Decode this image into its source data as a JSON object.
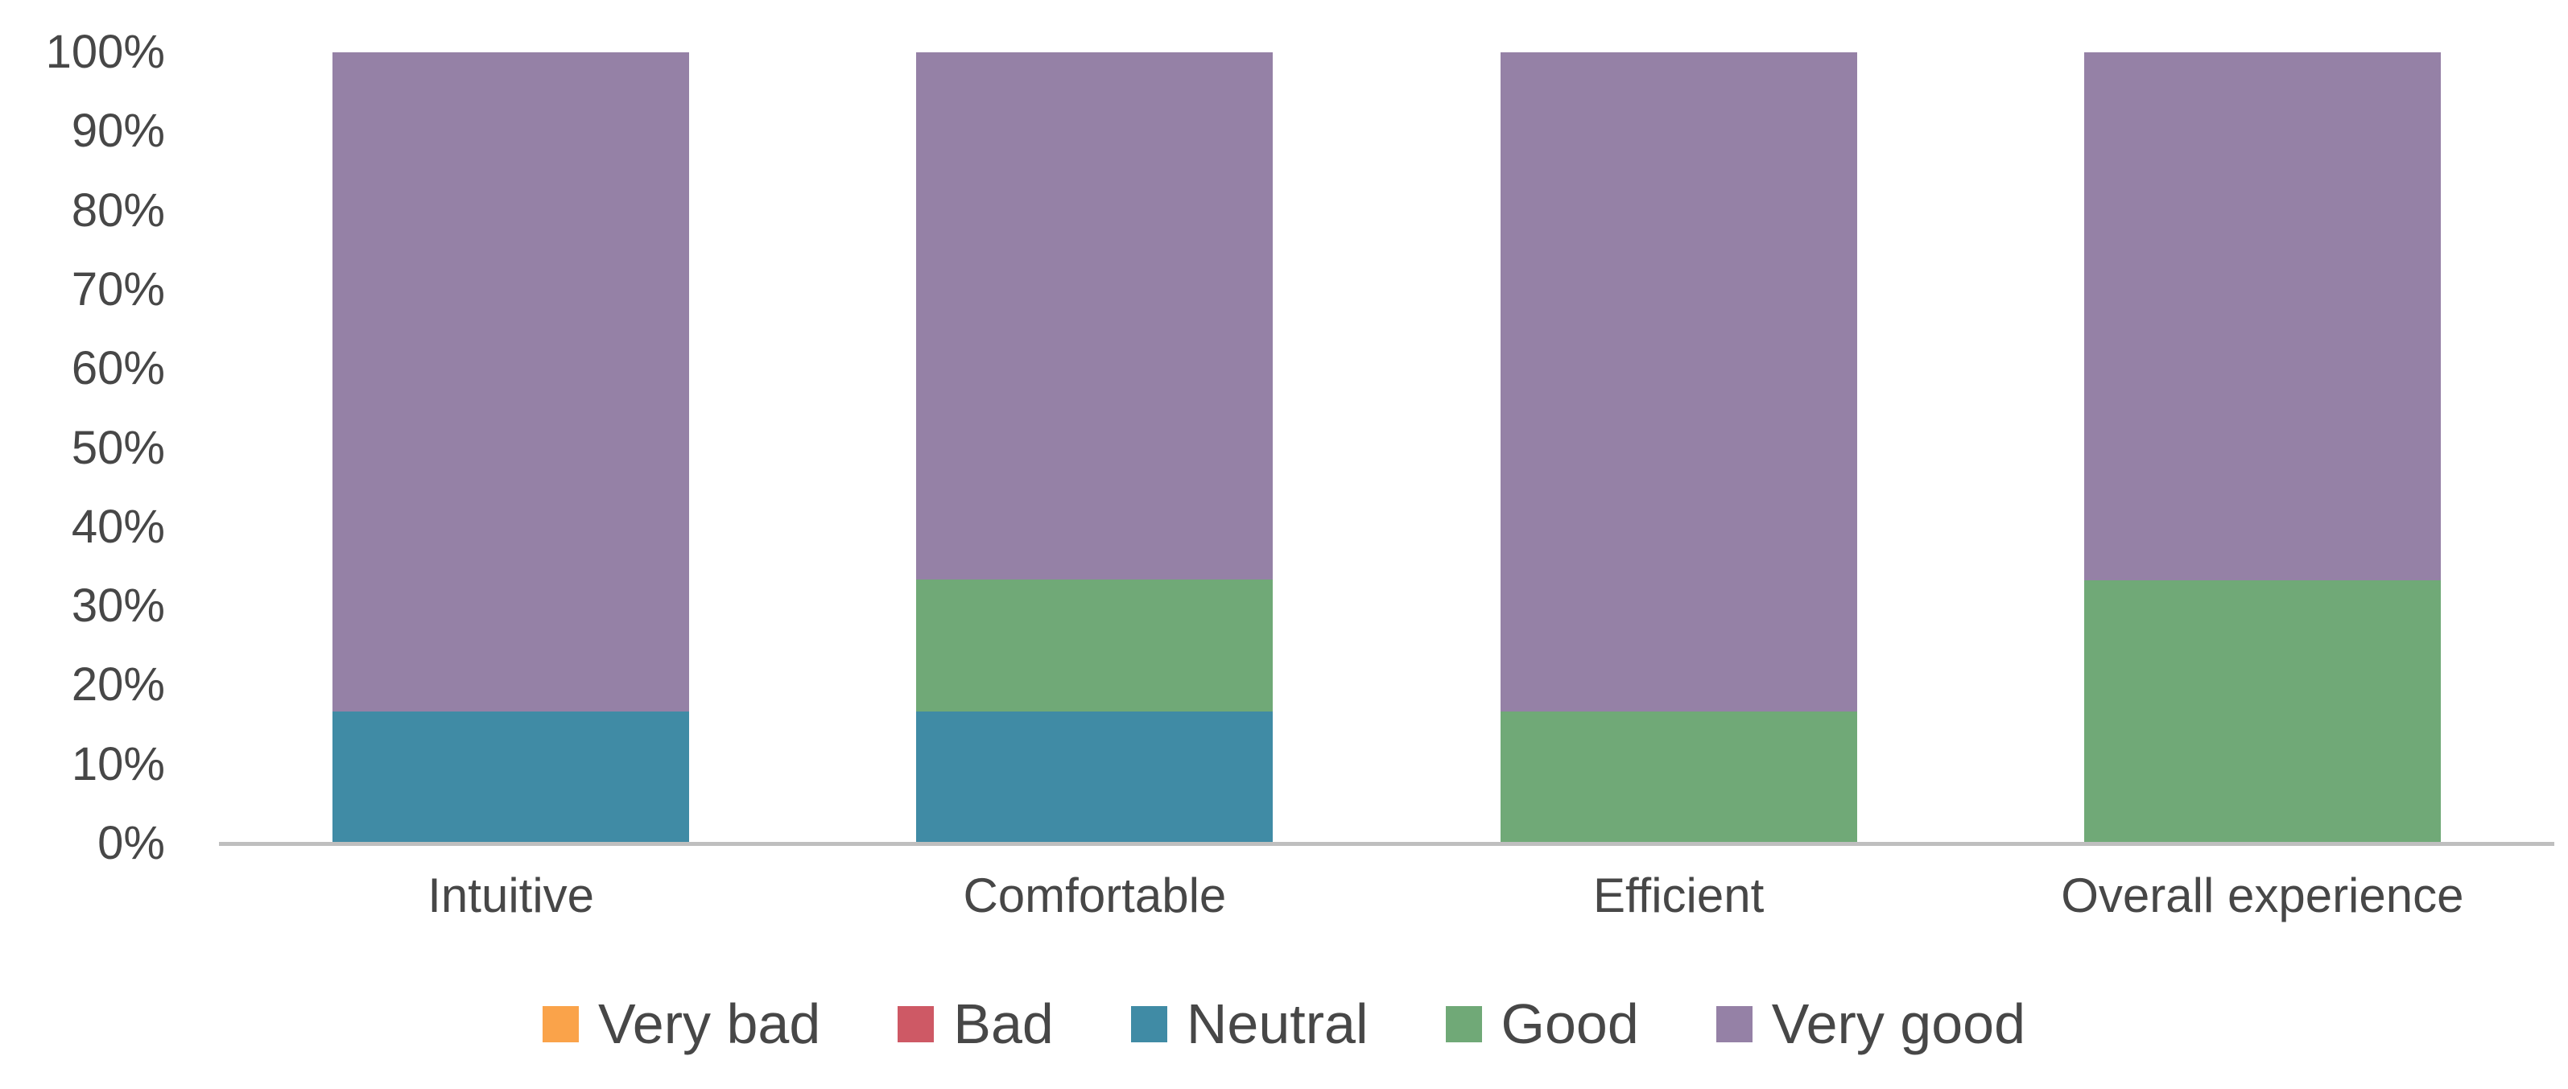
{
  "chart_data": {
    "type": "bar",
    "variant": "stacked-100-percent",
    "title": "",
    "xlabel": "",
    "ylabel": "",
    "categories": [
      "Intuitive",
      "Comfortable",
      "Efficient",
      "Overall experience"
    ],
    "series": [
      {
        "name": "Very bad",
        "color": "#FAA34A",
        "values": [
          0,
          0,
          0,
          0
        ]
      },
      {
        "name": "Bad",
        "color": "#CE5965",
        "values": [
          0,
          0,
          0,
          0
        ]
      },
      {
        "name": "Neutral",
        "color": "#408BA5",
        "values": [
          16.7,
          16.7,
          0,
          0
        ]
      },
      {
        "name": "Good",
        "color": "#70A977",
        "values": [
          0,
          16.7,
          16.7,
          33.3
        ]
      },
      {
        "name": "Very good",
        "color": "#9581A6",
        "values": [
          83.3,
          66.6,
          83.3,
          66.7
        ]
      }
    ],
    "ylim": [
      0,
      100
    ],
    "ytick_labels": [
      "0%",
      "10%",
      "20%",
      "30%",
      "40%",
      "50%",
      "60%",
      "70%",
      "80%",
      "90%",
      "100%"
    ],
    "grid": false,
    "legend_position": "bottom",
    "axis_line_color": "#BFBFBF",
    "text_color": "#474747",
    "plot_background": "#FFFFFF"
  }
}
